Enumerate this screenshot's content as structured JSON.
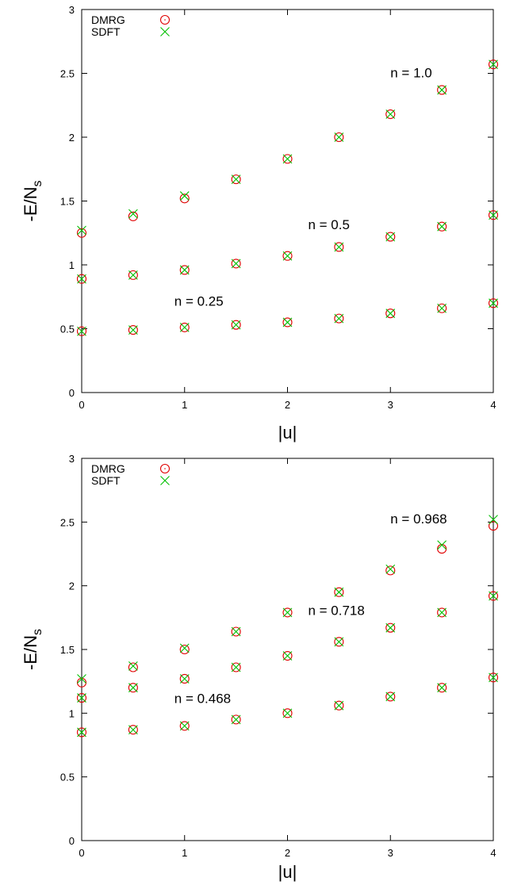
{
  "chart_data": [
    {
      "type": "scatter",
      "xlabel": "|u|",
      "ylabel": "-E/N",
      "ylabel_subscript": "s",
      "xlim": [
        0,
        4
      ],
      "ylim": [
        0,
        3
      ],
      "x_ticks": [
        0,
        1,
        2,
        3,
        4
      ],
      "x_tick_labels": [
        "0",
        "1",
        "2",
        "3",
        "4"
      ],
      "y_ticks": [
        0,
        0.5,
        1,
        1.5,
        2,
        2.5,
        3
      ],
      "y_tick_labels": [
        "0",
        "0.5",
        "1",
        "1.5",
        "2",
        "2.5",
        "3"
      ],
      "grid": false,
      "legend": {
        "placement": "top-left",
        "entries": [
          "DMRG",
          "SDFT"
        ]
      },
      "x": [
        0,
        0.5,
        1,
        1.5,
        2,
        2.5,
        3,
        3.5,
        4
      ],
      "series": [
        {
          "name": "DMRG",
          "marker": "circle",
          "color": "#e00000",
          "groups": [
            [
              1.25,
              1.38,
              1.52,
              1.67,
              1.83,
              2.0,
              2.18,
              2.37,
              2.57
            ],
            [
              0.89,
              0.92,
              0.96,
              1.01,
              1.07,
              1.14,
              1.22,
              1.3,
              1.39
            ],
            [
              0.48,
              0.49,
              0.51,
              0.53,
              0.55,
              0.58,
              0.62,
              0.66,
              0.7
            ]
          ]
        },
        {
          "name": "SDFT",
          "marker": "x",
          "color": "#00c000",
          "groups": [
            [
              1.27,
              1.4,
              1.54,
              1.67,
              1.83,
              2.0,
              2.18,
              2.37,
              2.57
            ],
            [
              0.89,
              0.92,
              0.96,
              1.01,
              1.07,
              1.14,
              1.22,
              1.3,
              1.39
            ],
            [
              0.48,
              0.49,
              0.51,
              0.53,
              0.55,
              0.58,
              0.62,
              0.66,
              0.7
            ]
          ]
        }
      ],
      "annotations": [
        {
          "text": "n = 1.0",
          "x": 3.0,
          "y": 2.47
        },
        {
          "text": "n = 0.5",
          "x": 2.2,
          "y": 1.28
        },
        {
          "text": "n = 0.25",
          "x": 0.9,
          "y": 0.68
        }
      ]
    },
    {
      "type": "scatter",
      "xlabel": "|u|",
      "ylabel": "-E/N",
      "ylabel_subscript": "s",
      "xlim": [
        0,
        4
      ],
      "ylim": [
        0,
        3
      ],
      "x_ticks": [
        0,
        1,
        2,
        3,
        4
      ],
      "x_tick_labels": [
        "0",
        "1",
        "2",
        "3",
        "4"
      ],
      "y_ticks": [
        0,
        0.5,
        1,
        1.5,
        2,
        2.5,
        3
      ],
      "y_tick_labels": [
        "0",
        "0.5",
        "1",
        "1.5",
        "2",
        "2.5",
        "3"
      ],
      "grid": false,
      "legend": {
        "placement": "top-left",
        "entries": [
          "DMRG",
          "SDFT"
        ]
      },
      "x": [
        0,
        0.5,
        1,
        1.5,
        2,
        2.5,
        3,
        3.5,
        4
      ],
      "series": [
        {
          "name": "DMRG",
          "marker": "circle",
          "color": "#e00000",
          "groups": [
            [
              1.24,
              1.36,
              1.5,
              1.64,
              1.79,
              1.95,
              2.12,
              2.29,
              2.47
            ],
            [
              1.12,
              1.2,
              1.27,
              1.36,
              1.45,
              1.56,
              1.67,
              1.79,
              1.92
            ],
            [
              0.85,
              0.87,
              0.9,
              0.95,
              1.0,
              1.06,
              1.13,
              1.2,
              1.28
            ]
          ]
        },
        {
          "name": "SDFT",
          "marker": "x",
          "color": "#00c000",
          "groups": [
            [
              1.27,
              1.37,
              1.51,
              1.64,
              1.79,
              1.95,
              2.13,
              2.32,
              2.52
            ],
            [
              1.12,
              1.2,
              1.27,
              1.36,
              1.45,
              1.56,
              1.67,
              1.79,
              1.92
            ],
            [
              0.85,
              0.87,
              0.9,
              0.95,
              1.0,
              1.06,
              1.13,
              1.2,
              1.28
            ]
          ]
        }
      ],
      "annotations": [
        {
          "text": "n = 0.968",
          "x": 3.0,
          "y": 2.49
        },
        {
          "text": "n = 0.718",
          "x": 2.2,
          "y": 1.77
        },
        {
          "text": "n = 0.468",
          "x": 0.9,
          "y": 1.08
        }
      ]
    }
  ]
}
